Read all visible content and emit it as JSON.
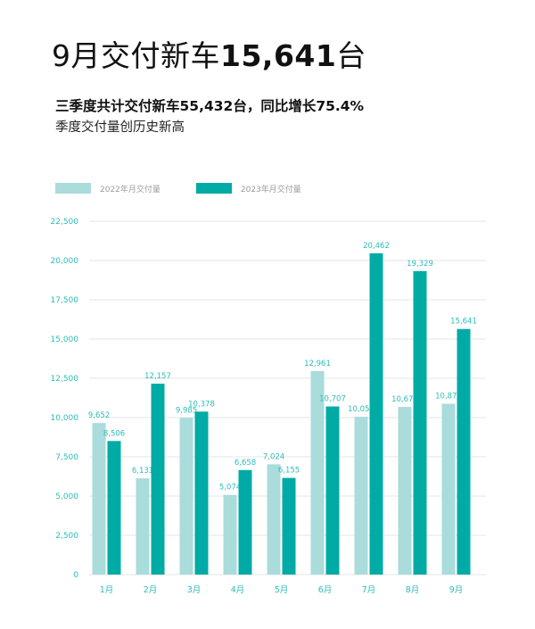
{
  "header": {
    "title_prefix": "9月交付新车",
    "title_number": "15,641",
    "title_suffix": "台",
    "subtitle1": "三季度共计交付新车55,432台，同比增长75.4%",
    "subtitle2": "季度交付量创历史新高"
  },
  "colors": {
    "series_2022": "#a9dcdb",
    "series_2023": "#00aba5",
    "axis_text": "#2cbdb8",
    "grid": "#e6e6e6"
  },
  "chart_data": {
    "type": "bar",
    "categories": [
      "1月",
      "2月",
      "3月",
      "4月",
      "5月",
      "6月",
      "7月",
      "8月",
      "9月"
    ],
    "series": [
      {
        "name": "2022年月交付量",
        "values": [
          9652,
          6131,
          9985,
          5074,
          7024,
          12961,
          10052,
          10677,
          10878
        ],
        "labels": [
          "9,652",
          "6,131",
          "9,985",
          "5,074",
          "7,024",
          "12,961",
          "10,052",
          "10,677",
          "10,878"
        ]
      },
      {
        "name": "2023年月交付量",
        "values": [
          8506,
          12157,
          10378,
          6658,
          6155,
          10707,
          20462,
          19329,
          15641
        ],
        "labels": [
          "8,506",
          "12,157",
          "10,378",
          "6,658",
          "6,155",
          "10,707",
          "20,462",
          "19,329",
          "15,641"
        ]
      }
    ],
    "yticks": [
      0,
      2500,
      5000,
      7500,
      10000,
      12500,
      15000,
      17500,
      20000,
      22500
    ],
    "ytick_labels": [
      "0",
      "2,500",
      "5,000",
      "7,500",
      "10,000",
      "12,500",
      "15,000",
      "17,500",
      "20,000",
      "22,500"
    ],
    "ylim": [
      0,
      22500
    ],
    "grid": true,
    "legend": "top-left"
  }
}
